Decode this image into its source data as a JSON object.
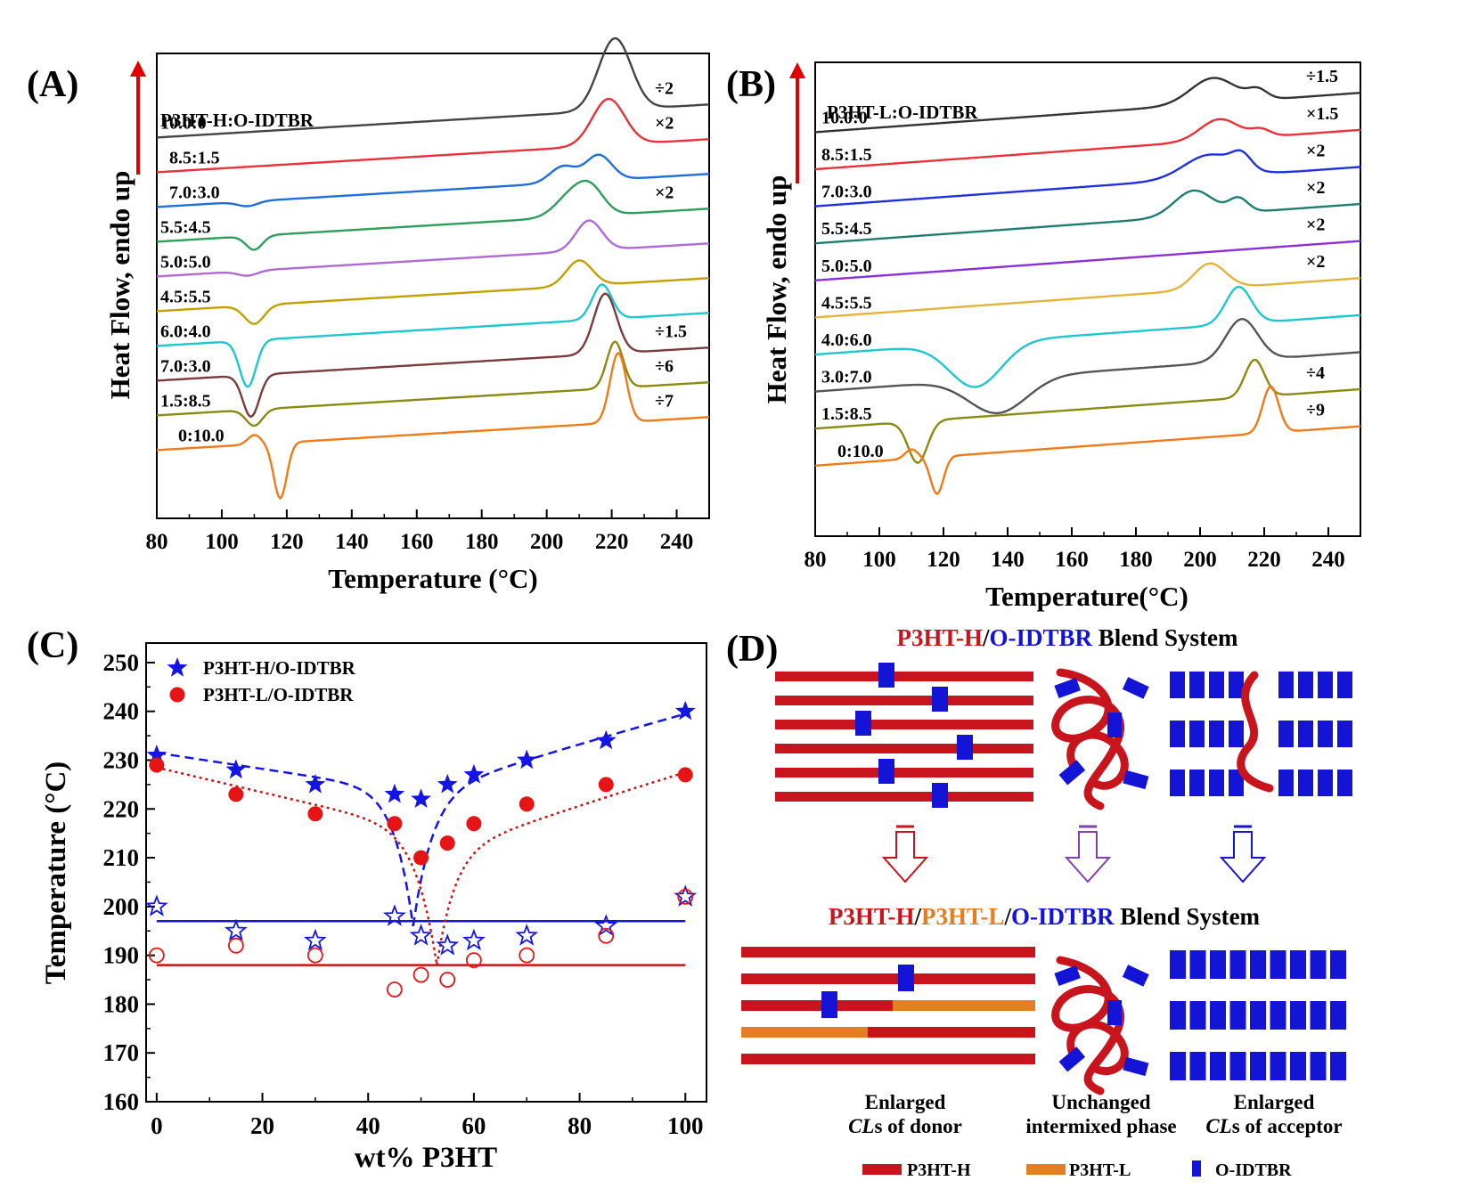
{
  "panel_labels": {
    "A": "(A)",
    "B": "(B)",
    "C": "(C)",
    "D": "(D)"
  },
  "colors": {
    "black": "#333333",
    "red": "#e8313a",
    "blue": "#1f6fd8",
    "green": "#2f9e5a",
    "violet": "#b06ad6",
    "gold": "#c2a000",
    "cyan": "#1ec7cf",
    "brown": "#7a3b3b",
    "olive": "#8a8a12",
    "orange": "#f07a18",
    "teal": "#1e7c72",
    "purple": "#8b2fd6",
    "yellow": "#e3b43c",
    "darkgray": "#555555",
    "arrow": "#e00000",
    "p3hth": "#c8141c",
    "p3htl": "#e57d22",
    "idtbr": "#1414d6",
    "mark_blue": "#1414e6",
    "mark_red": "#e61414",
    "purple_text": "#8040b0"
  },
  "chart_data": [
    {
      "id": "A",
      "type": "line",
      "title": "P3HT-H:O-IDTBR",
      "xlabel": "Temperature (°C)",
      "ylabel": "Heat Flow, endo up",
      "xlim": [
        80,
        250
      ],
      "xticks": [
        80,
        100,
        120,
        140,
        160,
        180,
        200,
        220,
        240
      ],
      "grid": false,
      "series": [
        {
          "name": "10.0:0",
          "scale": "÷2",
          "color": "#444444",
          "y": 6.3,
          "features": [
            {
              "type": "peak",
              "x": 221,
              "h": 1.55,
              "w": 5
            }
          ]
        },
        {
          "name": "8.5:1.5",
          "scale": "×2",
          "color": "#e8313a",
          "y": 5.55,
          "features": [
            {
              "type": "peak",
              "x": 219,
              "h": 1.0,
              "w": 5
            }
          ]
        },
        {
          "name": "7.0:3.0",
          "scale": "",
          "color": "#1f6fd8",
          "y": 4.8,
          "features": [
            {
              "type": "dip",
              "x": 108,
              "h": 0.1,
              "w": 3
            },
            {
              "type": "peak",
              "x": 205,
              "h": 0.35,
              "w": 4
            },
            {
              "type": "peak",
              "x": 216,
              "h": 0.55,
              "w": 4
            }
          ]
        },
        {
          "name": "5.5:4.5",
          "scale": "×2",
          "color": "#2f9e5a",
          "y": 4.05,
          "features": [
            {
              "type": "dip",
              "x": 110,
              "h": 0.3,
              "w": 2.5
            },
            {
              "type": "peak",
              "x": 208,
              "h": 0.5,
              "w": 5
            },
            {
              "type": "peak",
              "x": 214,
              "h": 0.45,
              "w": 4
            }
          ]
        },
        {
          "name": "5.0:5.0",
          "scale": "",
          "color": "#b06ad6",
          "y": 3.3,
          "features": [
            {
              "type": "dip",
              "x": 108,
              "h": 0.1,
              "w": 3
            },
            {
              "type": "peak",
              "x": 213,
              "h": 0.65,
              "w": 4
            }
          ]
        },
        {
          "name": "4.5:5.5",
          "scale": "",
          "color": "#c2a000",
          "y": 2.55,
          "features": [
            {
              "type": "dip",
              "x": 110,
              "h": 0.4,
              "w": 3
            },
            {
              "type": "peak",
              "x": 210,
              "h": 0.55,
              "w": 4
            }
          ]
        },
        {
          "name": "6.0:4.0",
          "scale": "",
          "color": "#1ec7cf",
          "y": 1.8,
          "features": [
            {
              "type": "dip",
              "x": 108,
              "h": 1.0,
              "w": 2.5
            },
            {
              "type": "peak",
              "x": 217,
              "h": 0.75,
              "w": 3
            }
          ]
        },
        {
          "name": "7.0:3.0",
          "scale": "÷1.5",
          "color": "#7a3b3b",
          "y": 1.05,
          "features": [
            {
              "type": "dip",
              "x": 109,
              "h": 0.9,
              "w": 2.5
            },
            {
              "type": "peak",
              "x": 218,
              "h": 1.3,
              "w": 3.5
            }
          ]
        },
        {
          "name": "1.5:8.5",
          "scale": "÷6",
          "color": "#8a8a12",
          "y": 0.3,
          "features": [
            {
              "type": "dip",
              "x": 110,
              "h": 0.35,
              "w": 2.5
            },
            {
              "type": "peak",
              "x": 221,
              "h": 1.0,
              "w": 2.5
            }
          ]
        },
        {
          "name": "0:10.0",
          "scale": "÷7",
          "color": "#f07a18",
          "y": -0.45,
          "features": [
            {
              "type": "peak",
              "x": 110,
              "h": 0.2,
              "w": 2
            },
            {
              "type": "dip",
              "x": 118,
              "h": 1.2,
              "w": 2
            },
            {
              "type": "peak",
              "x": 222,
              "h": 1.5,
              "w": 2.5
            }
          ]
        }
      ]
    },
    {
      "id": "B",
      "type": "line",
      "title": "P3HT-L:O-IDTBR",
      "xlabel": "Temperature(°C)",
      "ylabel": "Heat Flow, endo up",
      "xlim": [
        80,
        250
      ],
      "xticks": [
        80,
        100,
        120,
        140,
        160,
        180,
        200,
        220,
        240
      ],
      "grid": false,
      "series": [
        {
          "name": "10.0:0",
          "scale": "÷1.5",
          "color": "#333333",
          "y": 6.8,
          "features": [
            {
              "type": "peak",
              "x": 204,
              "h": 0.55,
              "w": 7
            },
            {
              "type": "peak",
              "x": 218,
              "h": 0.2,
              "w": 3
            }
          ]
        },
        {
          "name": "8.5:1.5",
          "scale": "×1.5",
          "color": "#e8313a",
          "y": 6.0,
          "features": [
            {
              "type": "peak",
              "x": 206,
              "h": 0.45,
              "w": 6
            },
            {
              "type": "peak",
              "x": 219,
              "h": 0.15,
              "w": 3
            }
          ]
        },
        {
          "name": "7.0:3.0",
          "scale": "×2",
          "color": "#1f30e0",
          "y": 5.2,
          "features": [
            {
              "type": "peak",
              "x": 203,
              "h": 0.5,
              "w": 8
            },
            {
              "type": "peak",
              "x": 213,
              "h": 0.3,
              "w": 3
            }
          ]
        },
        {
          "name": "5.5:4.5",
          "scale": "×2",
          "color": "#1e7c72",
          "y": 4.4,
          "features": [
            {
              "type": "peak",
              "x": 198,
              "h": 0.55,
              "w": 6
            },
            {
              "type": "peak",
              "x": 212,
              "h": 0.3,
              "w": 3
            }
          ]
        },
        {
          "name": "5.0:5.0",
          "scale": "×2",
          "color": "#8b2fd6",
          "y": 3.6,
          "features": []
        },
        {
          "name": "4.5:5.5",
          "scale": "×2",
          "color": "#e3b43c",
          "y": 2.8,
          "features": [
            {
              "type": "peak",
              "x": 203,
              "h": 0.55,
              "w": 5
            }
          ]
        },
        {
          "name": "4.0:6.0",
          "scale": "",
          "color": "#1ec7cf",
          "y": 2.0,
          "features": [
            {
              "type": "dip",
              "x": 130,
              "h": 0.95,
              "w": 8
            },
            {
              "type": "peak",
              "x": 212,
              "h": 0.8,
              "w": 4
            }
          ]
        },
        {
          "name": "3.0:7.0",
          "scale": "",
          "color": "#555555",
          "y": 1.2,
          "features": [
            {
              "type": "dip",
              "x": 137,
              "h": 0.75,
              "w": 9
            },
            {
              "type": "peak",
              "x": 213,
              "h": 0.9,
              "w": 5
            }
          ]
        },
        {
          "name": "1.5:8.5",
          "scale": "÷4",
          "color": "#8a8a12",
          "y": 0.4,
          "features": [
            {
              "type": "dip",
              "x": 112,
              "h": 0.9,
              "w": 3
            },
            {
              "type": "peak",
              "x": 217,
              "h": 0.8,
              "w": 3
            }
          ]
        },
        {
          "name": "0:10.0",
          "scale": "÷9",
          "color": "#f07a18",
          "y": -0.4,
          "features": [
            {
              "type": "peak",
              "x": 110,
              "h": 0.2,
              "w": 2
            },
            {
              "type": "dip",
              "x": 118,
              "h": 0.8,
              "w": 2
            },
            {
              "type": "peak",
              "x": 222,
              "h": 1.0,
              "w": 2.5
            }
          ]
        }
      ]
    },
    {
      "id": "C",
      "type": "scatter",
      "xlabel": "wt% P3HT",
      "ylabel": "Temperature (°C)",
      "xlim": [
        -2,
        104
      ],
      "ylim": [
        160,
        254
      ],
      "xticks": [
        0,
        20,
        40,
        60,
        80,
        100
      ],
      "yticks": [
        160,
        170,
        180,
        190,
        200,
        210,
        220,
        230,
        240,
        250
      ],
      "legend": "top-left",
      "grid": false,
      "series": [
        {
          "name": "P3HT-H/O-IDTBR",
          "marker": "star-filled",
          "color": "#1414e6",
          "x": [
            0,
            15,
            30,
            45,
            50,
            55,
            60,
            70,
            85,
            100
          ],
          "y": [
            231,
            228,
            225,
            223,
            222,
            225,
            227,
            230,
            234,
            240
          ]
        },
        {
          "name": "P3HT-L/O-IDTBR",
          "marker": "circle-filled",
          "color": "#e61414",
          "x": [
            0,
            15,
            30,
            45,
            50,
            55,
            60,
            70,
            85,
            100
          ],
          "y": [
            229,
            223,
            219,
            217,
            210,
            213,
            217,
            221,
            225,
            227
          ]
        },
        {
          "marker": "star-open",
          "color": "#1414e6",
          "x": [
            0,
            15,
            30,
            45,
            50,
            55,
            60,
            70,
            85,
            100
          ],
          "y": [
            200,
            195,
            193,
            198,
            194,
            192,
            193,
            194,
            196,
            202
          ]
        },
        {
          "marker": "circle-open",
          "color": "#e61414",
          "x": [
            0,
            15,
            30,
            45,
            50,
            55,
            60,
            70,
            85,
            100
          ],
          "y": [
            190,
            192,
            190,
            183,
            186,
            185,
            189,
            190,
            194,
            202
          ]
        }
      ],
      "fits": [
        {
          "color": "#1414e6",
          "style": "dashed",
          "eutectic_x": 48.5,
          "eutectic_y": 196,
          "left": {
            "a": 231.5,
            "b": 223.5
          },
          "right": {
            "a": 222.0,
            "b": 239.5
          }
        },
        {
          "color": "#c81414",
          "style": "dotted",
          "eutectic_x": 53,
          "eutectic_y": 188,
          "left": {
            "a": 228.5,
            "b": 215.0
          },
          "right": {
            "a": 210.0,
            "b": 227.5
          }
        }
      ],
      "hlines": [
        {
          "y": 197,
          "x0": 0,
          "x1": 100,
          "color": "#1414e6"
        },
        {
          "y": 188,
          "x0": 0,
          "x1": 100,
          "color": "#c81414"
        }
      ]
    }
  ],
  "diagram": {
    "top_title": {
      "p1": "P3HT-H",
      "s1": "/",
      "p2": "O-IDTBR",
      "p3": " Blend System"
    },
    "bottom_title": {
      "p1": "P3HT-H",
      "s1": "/",
      "p2": "P3HT-L",
      "s2": "/",
      "p3": "O-IDTBR",
      "p4": " Blend System"
    },
    "captions": {
      "donor_1": "Enlarged",
      "donor_2a": "CL",
      "donor_2b": "s of donor",
      "mixed_1": "Unchanged",
      "mixed_2": "intermixed phase",
      "acc_1": "Enlarged",
      "acc_2a": "CL",
      "acc_2b": "s of acceptor"
    },
    "legend": {
      "h": "P3HT-H",
      "l": "P3HT-L",
      "o": "O-IDTBR"
    }
  }
}
